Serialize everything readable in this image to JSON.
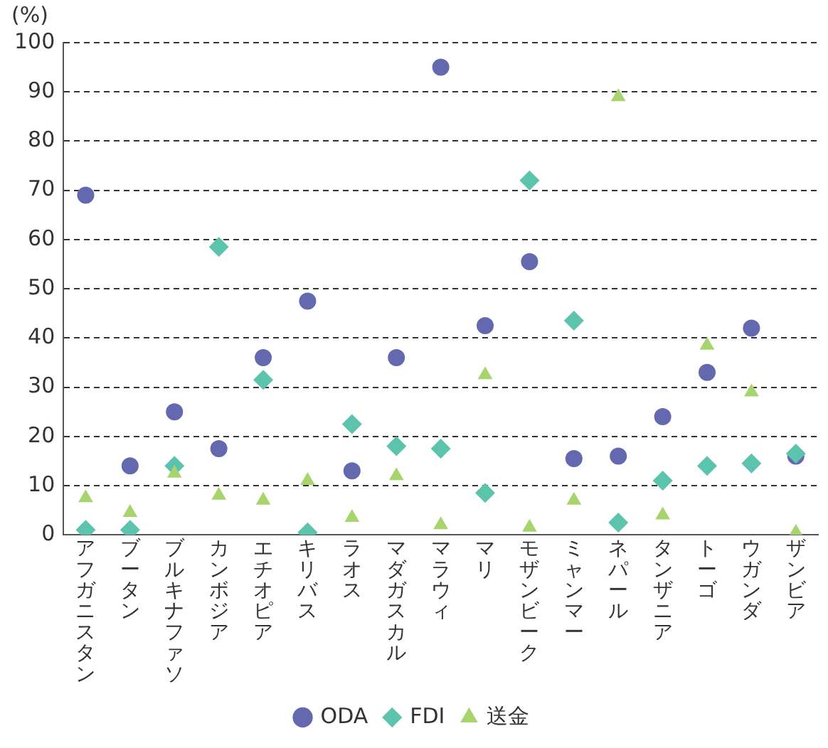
{
  "chart_data": {
    "type": "scatter",
    "ylabel": "(%)",
    "categories": [
      "アフガニスタン",
      "ブータン",
      "ブルキナファソ",
      "カンボジア",
      "エチオピア",
      "キリバス",
      "ラオス",
      "マダガスカル",
      "マラウィ",
      "マリ",
      "モザンビーク",
      "ミャンマー",
      "ネパール",
      "タンザニア",
      "トーゴ",
      "ウガンダ",
      "ザンビア"
    ],
    "series": [
      {
        "name": "ODA",
        "color": "#6468ae",
        "marker": "circle",
        "values": [
          69,
          14,
          25,
          17.5,
          36,
          47.5,
          13,
          36,
          95,
          42.5,
          55.5,
          15.5,
          16,
          24,
          33,
          42,
          16
        ]
      },
      {
        "name": "FDI",
        "color": "#5cc4ac",
        "marker": "diamond",
        "values": [
          1,
          1,
          14,
          58.5,
          31.5,
          0.5,
          22.5,
          18,
          17.5,
          8.5,
          72,
          43.5,
          2.5,
          11,
          14,
          14.5,
          16.5
        ]
      },
      {
        "name": "送金",
        "color": "#a8d46e",
        "marker": "triangle",
        "values": [
          7.5,
          4.5,
          12.5,
          8,
          7,
          11,
          3.5,
          12,
          2,
          32.5,
          1.5,
          7,
          89,
          4,
          38.5,
          29,
          0.5
        ]
      }
    ],
    "ylim": [
      0,
      100
    ],
    "yticks": [
      0,
      10,
      20,
      30,
      40,
      50,
      60,
      70,
      80,
      90,
      100
    ],
    "grid": "y",
    "legend": "bottom"
  }
}
